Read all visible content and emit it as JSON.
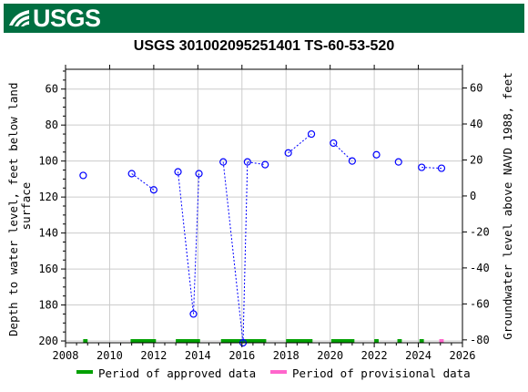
{
  "header": {
    "logo_text": "USGS"
  },
  "chart_data": {
    "type": "scatter",
    "title": "USGS 301002095251401 TS-60-53-520",
    "ylabel_left": "Depth to water level, feet below land surface",
    "ylabel_left_lines": [
      "Depth to water level, feet below land",
      "surface"
    ],
    "ylabel_right": "Groundwater level above NAVD 1988, feet",
    "xlim": [
      2008,
      2026
    ],
    "ylim_left": [
      201,
      49
    ],
    "ylim_right": [
      -81.6,
      70.4
    ],
    "x_ticks": [
      2008,
      2010,
      2012,
      2014,
      2016,
      2018,
      2020,
      2022,
      2024,
      2026
    ],
    "y_ticks_left": [
      60,
      80,
      100,
      120,
      140,
      160,
      180,
      200
    ],
    "y_ticks_right": [
      60,
      40,
      20,
      0,
      -20,
      -40,
      -60,
      -80
    ],
    "grid": true,
    "series": [
      {
        "name": "Depth to water level",
        "color": "#0000ff",
        "marker": "open-circle",
        "points": [
          {
            "x": 2008.8,
            "y": 108
          },
          {
            "x": 2011.0,
            "y": 107
          },
          {
            "x": 2012.0,
            "y": 116
          },
          {
            "x": 2013.1,
            "y": 106
          },
          {
            "x": 2013.8,
            "y": 185
          },
          {
            "x": 2014.05,
            "y": 107
          },
          {
            "x": 2015.15,
            "y": 100.5
          },
          {
            "x": 2016.05,
            "y": 201
          },
          {
            "x": 2016.25,
            "y": 100.5
          },
          {
            "x": 2017.05,
            "y": 102
          },
          {
            "x": 2018.1,
            "y": 95.5
          },
          {
            "x": 2019.15,
            "y": 85
          },
          {
            "x": 2020.15,
            "y": 90
          },
          {
            "x": 2021.0,
            "y": 100
          },
          {
            "x": 2022.1,
            "y": 96.5
          },
          {
            "x": 2023.1,
            "y": 100.5
          },
          {
            "x": 2024.15,
            "y": 103.5
          },
          {
            "x": 2025.05,
            "y": 104
          }
        ],
        "connected_pairs": [
          [
            1,
            2
          ],
          [
            3,
            4
          ],
          [
            4,
            5
          ],
          [
            6,
            7
          ],
          [
            7,
            8
          ],
          [
            8,
            9
          ],
          [
            10,
            11
          ],
          [
            12,
            13
          ],
          [
            16,
            17
          ]
        ]
      }
    ],
    "approval_periods": {
      "approved": [
        [
          2008.8,
          2009.0
        ],
        [
          2010.95,
          2012.1
        ],
        [
          2013.0,
          2014.1
        ],
        [
          2015.05,
          2017.1
        ],
        [
          2018.0,
          2019.2
        ],
        [
          2020.05,
          2021.1
        ],
        [
          2022.0,
          2022.2
        ],
        [
          2023.05,
          2023.25
        ],
        [
          2024.05,
          2024.25
        ]
      ],
      "provisional": [
        [
          2024.95,
          2025.15
        ]
      ],
      "approved_color": "#00a000",
      "provisional_color": "#ff66cc"
    },
    "legend": {
      "placement": "bottom",
      "approved_label": "Period of approved data",
      "provisional_label": "Period of provisional data"
    }
  }
}
